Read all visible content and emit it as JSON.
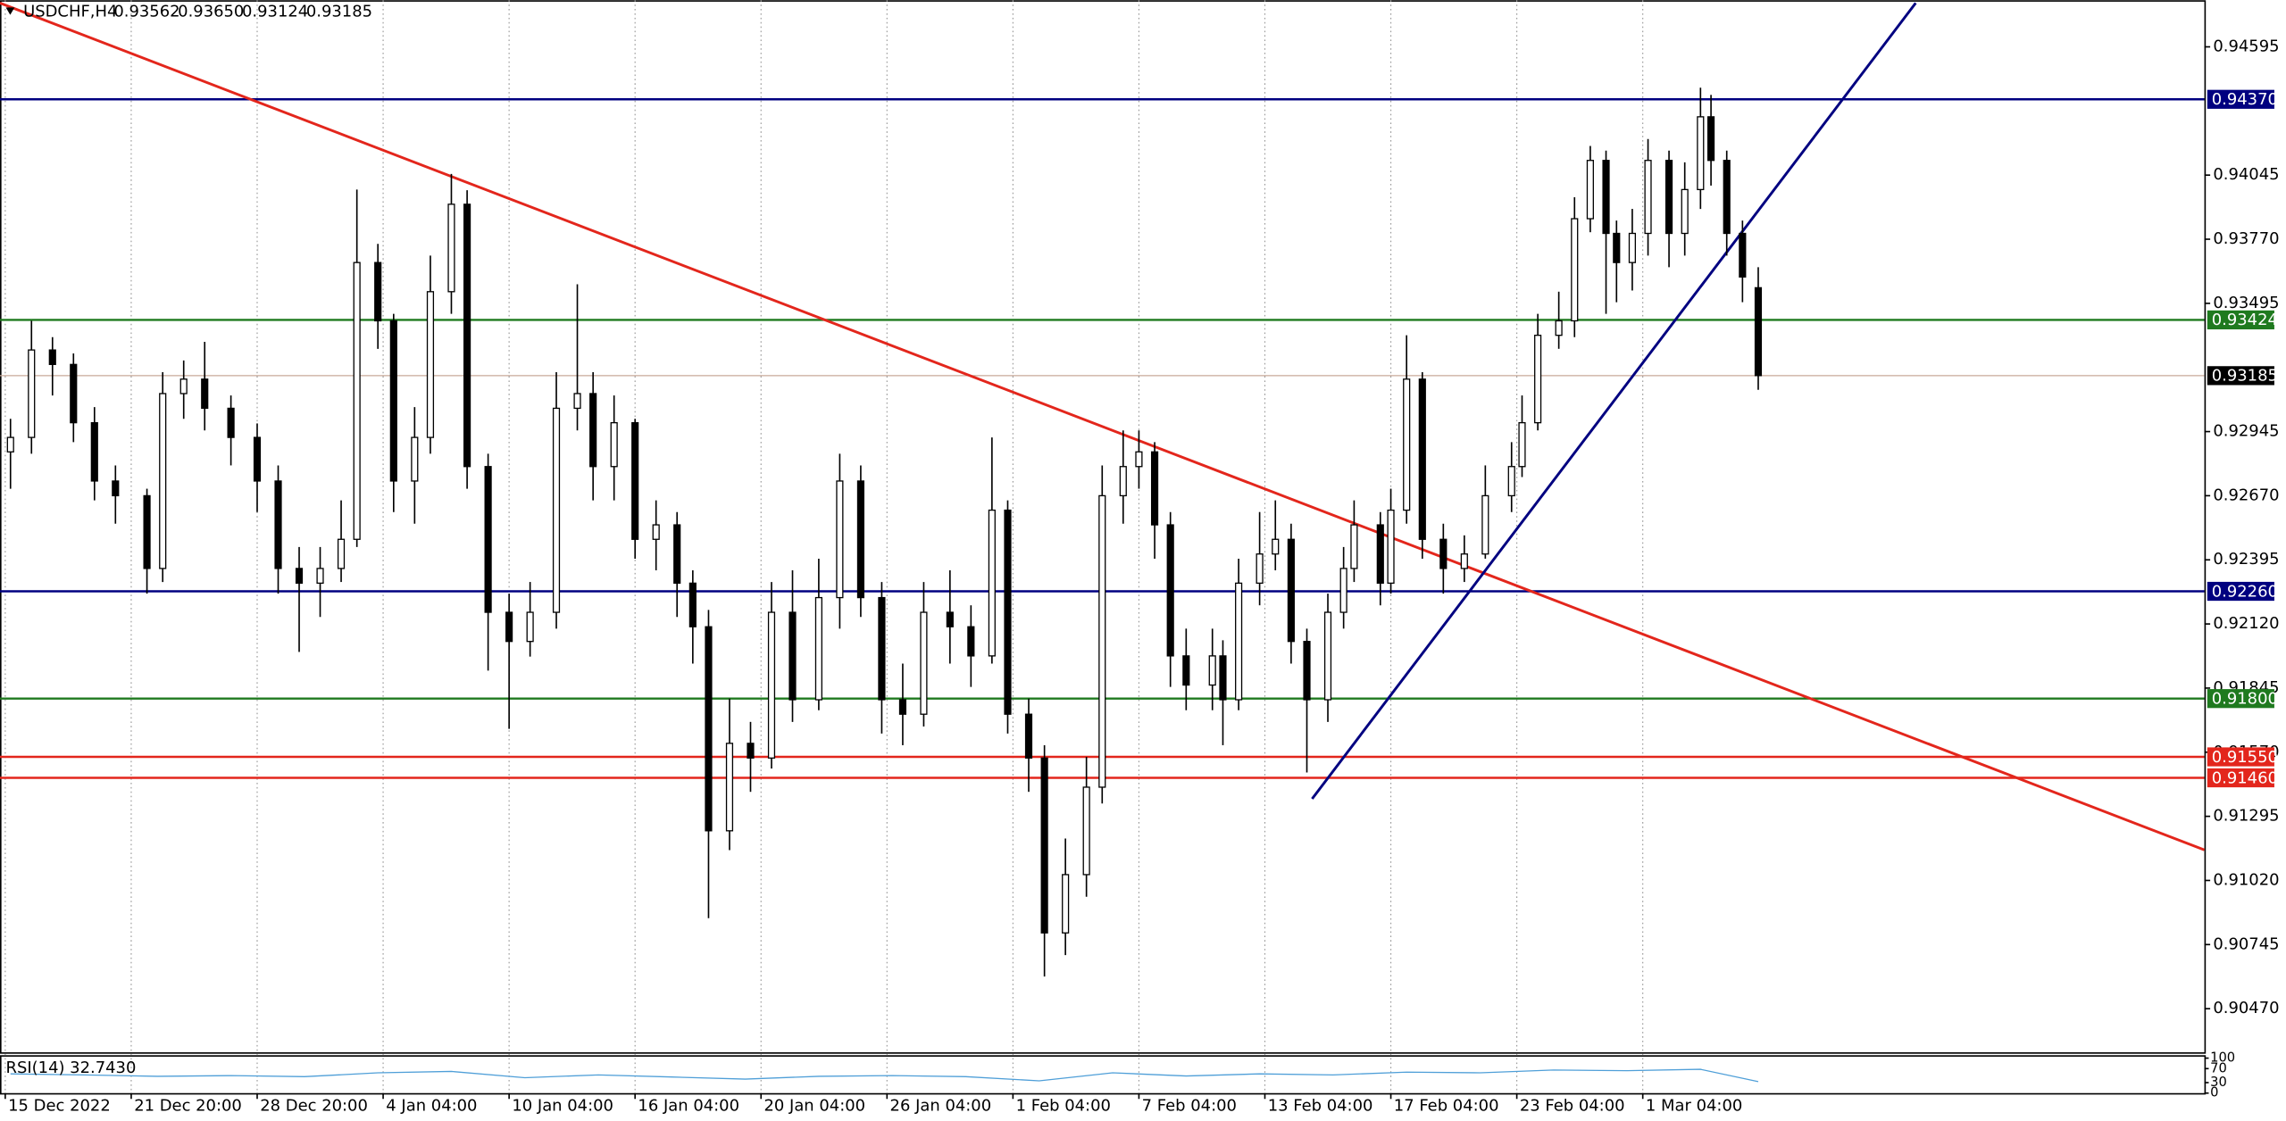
{
  "chart_data": {
    "type": "candlestick",
    "quote": {
      "symbol": "USDCHF,H4",
      "values": [
        0.93562,
        0.9365,
        0.93124,
        0.93185
      ],
      "value_labels": [
        "0.93562",
        "0.93650",
        "0.93124",
        "0.93185"
      ]
    },
    "x": [
      2,
      6,
      10,
      14,
      18,
      22,
      28,
      31,
      35,
      39,
      44,
      49,
      53,
      57,
      61,
      65,
      68,
      72,
      75,
      79,
      82,
      86,
      89,
      93,
      97,
      101,
      106,
      110,
      113,
      117,
      121,
      125,
      129,
      132,
      135,
      139,
      143,
      147,
      151,
      156,
      160,
      164,
      168,
      172,
      176,
      181,
      185,
      189,
      192,
      196,
      199,
      203,
      207,
      210,
      214,
      217,
      220,
      223,
      226,
      231,
      233,
      236,
      240,
      243,
      246,
      249,
      253,
      256,
      258,
      263,
      265,
      268,
      271,
      275,
      279,
      283,
      288,
      290,
      293,
      297,
      300,
      303,
      306,
      308,
      311,
      314,
      318,
      321,
      324,
      326,
      329,
      332,
      335
    ],
    "open": [
      0.92858,
      0.9292,
      0.93295,
      0.93233,
      0.92983,
      0.92733,
      0.9267,
      0.92358,
      0.93108,
      0.9317,
      0.93045,
      0.9292,
      0.92733,
      0.92358,
      0.92295,
      0.92358,
      0.92483,
      0.9367,
      0.9342,
      0.92733,
      0.9292,
      0.93545,
      0.9392,
      0.92795,
      0.9217,
      0.92045,
      0.9217,
      0.93045,
      0.93108,
      0.92795,
      0.92983,
      0.92483,
      0.92545,
      0.92295,
      0.92108,
      0.91233,
      0.91608,
      0.91545,
      0.9217,
      0.91795,
      0.92233,
      0.92733,
      0.92233,
      0.91795,
      0.91733,
      0.9217,
      0.92108,
      0.91983,
      0.92608,
      0.91733,
      0.91545,
      0.90795,
      0.91045,
      0.9142,
      0.9267,
      0.92795,
      0.92858,
      0.92545,
      0.91983,
      0.91858,
      0.91983,
      0.91795,
      0.92295,
      0.9242,
      0.92483,
      0.92045,
      0.91795,
      0.9217,
      0.92358,
      0.92545,
      0.92295,
      0.92608,
      0.9317,
      0.92483,
      0.92358,
      0.9242,
      0.9267,
      0.92795,
      0.92983,
      0.93358,
      0.9342,
      0.93858,
      0.94108,
      0.93795,
      0.9367,
      0.93795,
      0.94108,
      0.93795,
      0.93983,
      0.94295,
      0.94108,
      0.93795,
      0.93562
    ],
    "high": [
      0.93,
      0.9342,
      0.9335,
      0.9328,
      0.9305,
      0.928,
      0.927,
      0.932,
      0.9325,
      0.9333,
      0.931,
      0.9298,
      0.928,
      0.9245,
      0.9245,
      0.9265,
      0.93983,
      0.9375,
      0.9345,
      0.9305,
      0.937,
      0.9405,
      0.9398,
      0.9285,
      0.9225,
      0.923,
      0.932,
      0.93577,
      0.932,
      0.931,
      0.93,
      0.9265,
      0.926,
      0.9235,
      0.9218,
      0.918,
      0.917,
      0.923,
      0.9235,
      0.924,
      0.9285,
      0.928,
      0.923,
      0.9195,
      0.923,
      0.9235,
      0.922,
      0.9292,
      0.9265,
      0.918,
      0.916,
      0.912,
      0.9155,
      0.928,
      0.9295,
      0.9295,
      0.929,
      0.926,
      0.921,
      0.921,
      0.9205,
      0.924,
      0.926,
      0.9265,
      0.9255,
      0.921,
      0.9225,
      0.9245,
      0.9265,
      0.926,
      0.927,
      0.93358,
      0.932,
      0.9255,
      0.925,
      0.928,
      0.929,
      0.931,
      0.9345,
      0.93545,
      0.9395,
      0.9417,
      0.9415,
      0.9385,
      0.939,
      0.942,
      0.9415,
      0.941,
      0.9442,
      0.94389,
      0.9415,
      0.9385,
      0.9365
    ],
    "low": [
      0.927,
      0.9285,
      0.931,
      0.929,
      0.9265,
      0.9255,
      0.9225,
      0.923,
      0.93,
      0.9295,
      0.928,
      0.926,
      0.9225,
      0.92,
      0.9215,
      0.923,
      0.9245,
      0.933,
      0.926,
      0.9255,
      0.9285,
      0.9345,
      0.927,
      0.9192,
      0.9167,
      0.9198,
      0.921,
      0.9295,
      0.9265,
      0.9265,
      0.924,
      0.9235,
      0.9215,
      0.9195,
      0.90858,
      0.9115,
      0.914,
      0.915,
      0.917,
      0.9175,
      0.921,
      0.9215,
      0.9165,
      0.916,
      0.9168,
      0.9195,
      0.9185,
      0.9195,
      0.9165,
      0.914,
      0.90608,
      0.907,
      0.9095,
      0.9135,
      0.9255,
      0.927,
      0.924,
      0.9185,
      0.9175,
      0.9175,
      0.916,
      0.9175,
      0.922,
      0.9235,
      0.9195,
      0.91483,
      0.917,
      0.921,
      0.923,
      0.922,
      0.9225,
      0.9255,
      0.924,
      0.9225,
      0.923,
      0.924,
      0.926,
      0.9275,
      0.9295,
      0.933,
      0.9335,
      0.938,
      0.9345,
      0.935,
      0.9355,
      0.937,
      0.9365,
      0.937,
      0.939,
      0.94,
      0.937,
      0.935,
      0.93124
    ],
    "close": [
      0.9292,
      0.93295,
      0.93233,
      0.92983,
      0.92733,
      0.9267,
      0.92358,
      0.93108,
      0.9317,
      0.93045,
      0.9292,
      0.92733,
      0.92358,
      0.92295,
      0.92358,
      0.92483,
      0.9367,
      0.9342,
      0.92733,
      0.9292,
      0.93545,
      0.9392,
      0.92795,
      0.9217,
      0.92045,
      0.9217,
      0.93045,
      0.93108,
      0.92795,
      0.92983,
      0.92483,
      0.92545,
      0.92295,
      0.92108,
      0.91233,
      0.91608,
      0.91545,
      0.9217,
      0.91795,
      0.92233,
      0.92733,
      0.92233,
      0.91795,
      0.91733,
      0.9217,
      0.92108,
      0.91983,
      0.92608,
      0.91733,
      0.91545,
      0.90795,
      0.91045,
      0.9142,
      0.9267,
      0.92795,
      0.92858,
      0.92545,
      0.91983,
      0.91858,
      0.91983,
      0.91795,
      0.92295,
      0.9242,
      0.92483,
      0.92045,
      0.91795,
      0.9217,
      0.92358,
      0.92545,
      0.92295,
      0.92608,
      0.9317,
      0.92483,
      0.92358,
      0.9242,
      0.9267,
      0.92795,
      0.92983,
      0.93358,
      0.9342,
      0.93858,
      0.94108,
      0.93795,
      0.9367,
      0.93795,
      0.94108,
      0.93795,
      0.93983,
      0.94295,
      0.94108,
      0.93795,
      0.93608,
      0.93185
    ],
    "xlim": [
      0,
      420
    ],
    "ylim": [
      0.90283,
      0.94795
    ],
    "xticks": [
      {
        "value": 1,
        "label": "15 Dec 2022"
      },
      {
        "value": 25,
        "label": "21 Dec 20:00"
      },
      {
        "value": 49,
        "label": "28 Dec 20:00"
      },
      {
        "value": 73,
        "label": "4 Jan 04:00"
      },
      {
        "value": 97,
        "label": "10 Jan 04:00"
      },
      {
        "value": 121,
        "label": "16 Jan 04:00"
      },
      {
        "value": 145,
        "label": "20 Jan 04:00"
      },
      {
        "value": 169,
        "label": "26 Jan 04:00"
      },
      {
        "value": 193,
        "label": "1 Feb 04:00"
      },
      {
        "value": 217,
        "label": "7 Feb 04:00"
      },
      {
        "value": 241,
        "label": "13 Feb 04:00"
      },
      {
        "value": 265,
        "label": "17 Feb 04:00"
      },
      {
        "value": 289,
        "label": "23 Feb 04:00"
      },
      {
        "value": 313,
        "label": "1 Mar 04:00"
      }
    ],
    "yticks": [
      0.94595,
      0.94045,
      {
        "value": 0.9377,
        "label": "0.93770"
      },
      0.93495,
      0.92945,
      {
        "value": 0.9267,
        "label": "0.92670"
      },
      0.92395,
      {
        "value": 0.9212,
        "label": "0.92120"
      },
      0.91845,
      {
        "value": 0.9157,
        "label": "0.91570"
      },
      0.91295,
      {
        "value": 0.9102,
        "label": "0.91020"
      },
      0.90745,
      {
        "value": 0.9047,
        "label": "0.90470"
      }
    ],
    "grid": true,
    "levels": [
      {
        "value": 0.9437,
        "label": "0.94370",
        "color": "#000080"
      },
      {
        "value": 0.93424,
        "label": "0.93424",
        "color": "#1f7a1f"
      },
      {
        "value": 0.9226,
        "label": "0.92260",
        "color": "#000080"
      },
      {
        "value": 0.918,
        "label": "0.91800",
        "color": "#1f7a1f"
      },
      {
        "value": 0.9155,
        "label": "0.91550",
        "color": "#e3261c"
      },
      {
        "value": 0.9146,
        "label": "0.91460",
        "color": "#e3261c"
      }
    ],
    "trendlines": [
      {
        "color": "#e3261c",
        "x": [
          0,
          420
        ],
        "y": [
          0.94783,
          0.91151
        ]
      },
      {
        "color": "#000080",
        "x": [
          250,
          365
        ],
        "y": [
          0.9137,
          0.94783
        ]
      }
    ],
    "rsi": {
      "label": "RSI(14) 32.7430",
      "color": "#4f9fd8",
      "ylim": [
        0,
        100
      ],
      "yticks": [
        0,
        30,
        70,
        100
      ],
      "x": [
        2,
        16,
        30,
        44,
        58,
        72,
        86,
        100,
        114,
        128,
        142,
        156,
        170,
        184,
        198,
        212,
        226,
        240,
        254,
        268,
        282,
        296,
        310,
        324,
        335
      ],
      "values": [
        55,
        52,
        48,
        50,
        47,
        58,
        62,
        44,
        52,
        46,
        40,
        48,
        50,
        47,
        35,
        58,
        49,
        55,
        52,
        60,
        58,
        66,
        64,
        68,
        32.743
      ]
    }
  }
}
